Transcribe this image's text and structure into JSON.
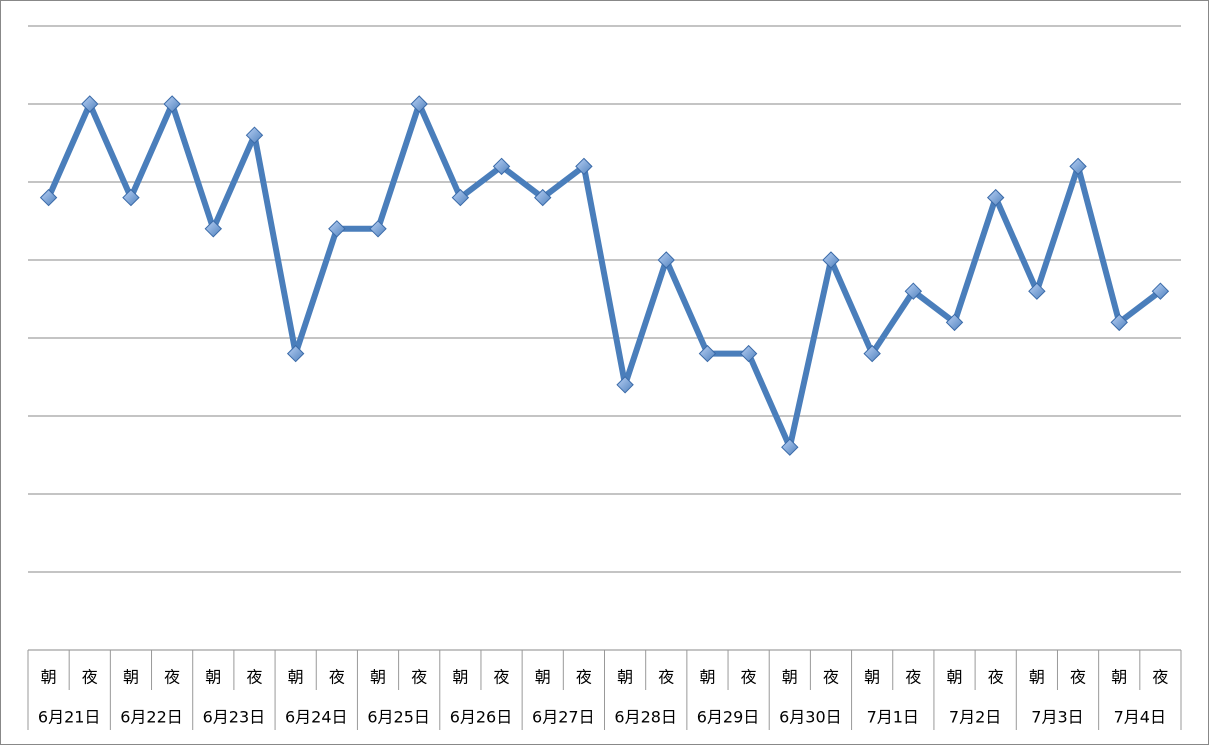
{
  "chart_data": {
    "type": "line",
    "categories": [
      "朝",
      "夜",
      "朝",
      "夜",
      "朝",
      "夜",
      "朝",
      "夜",
      "朝",
      "夜",
      "朝",
      "夜",
      "朝",
      "夜",
      "朝",
      "夜",
      "朝",
      "夜",
      "朝",
      "夜",
      "朝",
      "夜",
      "朝",
      "夜",
      "朝",
      "夜",
      "朝",
      "夜"
    ],
    "groups": [
      "6月21日",
      "6月22日",
      "6月23日",
      "6月24日",
      "6月25日",
      "6月26日",
      "6月27日",
      "6月28日",
      "6月29日",
      "6月30日",
      "7月1日",
      "7月2日",
      "7月3日",
      "7月4日"
    ],
    "values": [
      5.8,
      7,
      5.8,
      7,
      5.4,
      6.6,
      3.8,
      5.4,
      5.4,
      7,
      5.8,
      6.2,
      5.8,
      6.2,
      3.4,
      5,
      3.8,
      3.8,
      2.6,
      5,
      3.8,
      4.6,
      4.2,
      5.8,
      4.6,
      6.2,
      4.2,
      4.6
    ],
    "color": "#4a7ebb",
    "ylim": [
      0,
      8
    ],
    "yticks": [
      1,
      2,
      3,
      4,
      5,
      6,
      7,
      8
    ],
    "grid": true
  }
}
